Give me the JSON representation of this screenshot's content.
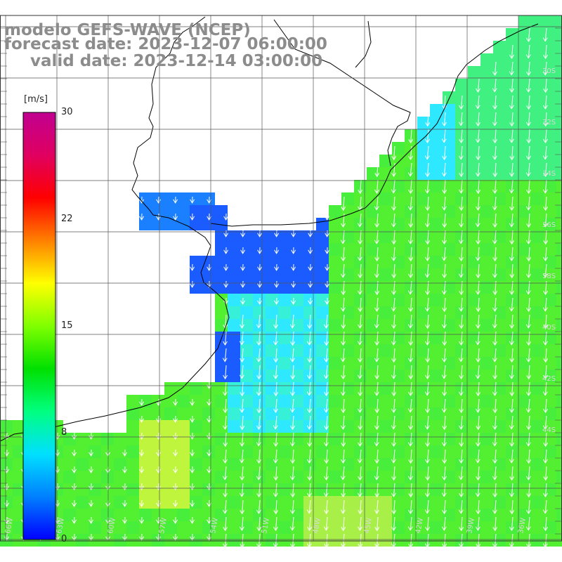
{
  "title": {
    "model": "modelo GEFS-WAVE (NCEP)",
    "forecast": "forecast date: 2023-12-07 06:00:00",
    "valid": "valid date: 2023-12-14 03:00:00"
  },
  "colorbar": {
    "unit": "[m/s]",
    "min": 0,
    "max": 30,
    "ticks": [
      "30",
      "22",
      "15",
      "8",
      "0"
    ],
    "tick_values": [
      30,
      22,
      15,
      8,
      0
    ],
    "colors": [
      "#0000ff",
      "#0080ff",
      "#00e0ff",
      "#00ff80",
      "#00e000",
      "#80ff00",
      "#ffff00",
      "#ff8000",
      "#ff0000",
      "#e00060",
      "#c00090"
    ]
  },
  "map": {
    "land_color": "#ffffff",
    "grid": true,
    "variable": "wind speed and direction",
    "dominant_wind": "north-northeasterly (blowing toward south-southwest)",
    "lon_labels": [
      "66W",
      "63W",
      "60W",
      "57W",
      "54W",
      "51W",
      "48W",
      "45W",
      "42W",
      "39W",
      "36W"
    ],
    "lat_labels": [
      "30S",
      "32S",
      "34S",
      "36S",
      "38S",
      "40S",
      "42S",
      "44S"
    ]
  }
}
